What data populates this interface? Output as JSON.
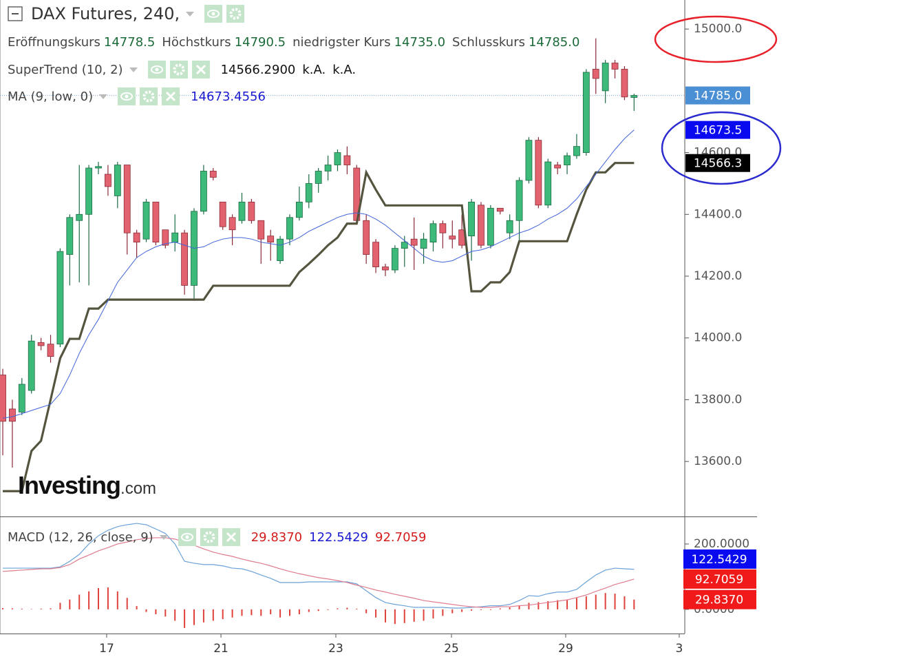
{
  "chart_data": [
    {
      "type": "candlestick",
      "title": "DAX Futures, 240,",
      "ohlc_legend": {
        "names": [
          "Eröffnungskurs",
          "Höchstkurs",
          "niedrigster Kurs",
          "Schlusskurs"
        ],
        "value_labels": [
          "14778.5",
          "14790.5",
          "14735.0",
          "14785.0"
        ]
      },
      "x": [
        0,
        1,
        2,
        3,
        4,
        5,
        6,
        7,
        8,
        9,
        10,
        11,
        12,
        13,
        14,
        15,
        16,
        17,
        18,
        19,
        20,
        21,
        22,
        23,
        24,
        25,
        26,
        27,
        28,
        29,
        30,
        31,
        32,
        33,
        34,
        35,
        36,
        37,
        38,
        39,
        40,
        41,
        42,
        43,
        44,
        45,
        46,
        47,
        48,
        49,
        50,
        51,
        52,
        53,
        54,
        55,
        56,
        57,
        58,
        59,
        60,
        61,
        62,
        63,
        64,
        65,
        66
      ],
      "open": [
        13880,
        13770,
        13760,
        13830,
        13985,
        13980,
        13980,
        14270,
        14380,
        14400,
        14550,
        14530,
        14460,
        14560,
        14340,
        14320,
        14440,
        14350,
        14310,
        14340,
        14170,
        14410,
        14540,
        14440,
        14390,
        14380,
        14440,
        14380,
        14330,
        14250,
        14320,
        14390,
        14440,
        14500,
        14540,
        14560,
        14590,
        14550,
        14380,
        14310,
        14230,
        14220,
        14290,
        14320,
        14290,
        14310,
        14370,
        14330,
        14350,
        14330,
        14430,
        14300,
        14420,
        14340,
        14380,
        14510,
        14640,
        14430,
        14560,
        14560,
        14590,
        14600,
        14870,
        14800,
        14890,
        14870,
        14778.5
      ],
      "high": [
        13900,
        13800,
        13870,
        14010,
        14000,
        14010,
        14290,
        14400,
        14560,
        14560,
        14570,
        14560,
        14570,
        14560,
        14350,
        14450,
        14440,
        14350,
        14400,
        14350,
        14420,
        14560,
        14550,
        14440,
        14400,
        14470,
        14450,
        14380,
        14350,
        14330,
        14400,
        14490,
        14530,
        14550,
        14590,
        14610,
        14620,
        14560,
        14400,
        14320,
        14240,
        14300,
        14330,
        14390,
        14340,
        14380,
        14380,
        14380,
        14400,
        14450,
        14440,
        14430,
        14420,
        14400,
        14520,
        14650,
        14650,
        14580,
        14570,
        14600,
        14660,
        14870,
        14970,
        14900,
        14900,
        14880,
        14790.5
      ],
      "low": [
        13620,
        13580,
        13750,
        13820,
        13960,
        13920,
        13970,
        14170,
        14180,
        14170,
        14530,
        14460,
        14420,
        14270,
        14260,
        14310,
        14300,
        14290,
        14280,
        14140,
        14120,
        14400,
        14510,
        14350,
        14300,
        14370,
        14370,
        14240,
        14250,
        14240,
        14300,
        14380,
        14420,
        14470,
        14510,
        14540,
        14530,
        14370,
        14240,
        14210,
        14200,
        14210,
        14230,
        14220,
        14240,
        14280,
        14290,
        14290,
        14290,
        14250,
        14290,
        14290,
        14400,
        14320,
        14310,
        14500,
        14420,
        14420,
        14530,
        14530,
        14580,
        14590,
        14790,
        14760,
        14840,
        14770,
        14735
      ],
      "close": [
        13730,
        13730,
        13850,
        13990,
        13975,
        13940,
        14280,
        14390,
        14400,
        14550,
        14555,
        14490,
        14560,
        14340,
        14310,
        14440,
        14310,
        14300,
        14340,
        14170,
        14410,
        14540,
        14520,
        14360,
        14350,
        14440,
        14380,
        14320,
        14310,
        14320,
        14390,
        14440,
        14500,
        14540,
        14560,
        14600,
        14560,
        14380,
        14270,
        14230,
        14220,
        14290,
        14310,
        14300,
        14320,
        14370,
        14340,
        14320,
        14300,
        14440,
        14300,
        14420,
        14410,
        14380,
        14510,
        14640,
        14430,
        14570,
        14550,
        14590,
        14620,
        14860,
        14840,
        14890,
        14870,
        14780,
        14785
      ],
      "up_color": "#3dba7a",
      "down_color": "#e2636f",
      "up_wick_color": "#1c6a44",
      "down_wick_color": "#8a2a36",
      "close_badge_label": "14785.0",
      "close_badge_color": "#4a8fd4",
      "series": [
        {
          "name": "SuperTrend (10, 2)",
          "color": "#55553f",
          "width": 3.2,
          "values": [
            13504,
            13504,
            13504,
            13634,
            13667,
            13800,
            13934,
            13997,
            13997,
            14095,
            14095,
            14124,
            14124,
            14124,
            14124,
            14124,
            14124,
            14124,
            14124,
            14124,
            14124,
            14124,
            14169,
            14169,
            14169,
            14169,
            14169,
            14169,
            14169,
            14169,
            14169,
            14213,
            14240,
            14269,
            14300,
            14325,
            14370,
            14370,
            14536,
            14480,
            14429,
            14429,
            14429,
            14429,
            14429,
            14429,
            14429,
            14429,
            14429,
            14151,
            14151,
            14180,
            14180,
            14213,
            14313,
            14313,
            14313,
            14313,
            14313,
            14313,
            14400,
            14480,
            14536,
            14536,
            14566.29,
            14566.29,
            14566.29
          ],
          "reading_label": "14566.2900",
          "notes": [
            "k.A.",
            "k.A."
          ],
          "badge_label": "14566.3",
          "badge_color": "#000000"
        },
        {
          "name": "MA (9, low, 0)",
          "color": "#3f63d8",
          "width": 1,
          "values": [
            13740,
            13745,
            13755,
            13765,
            13775,
            13785,
            13820,
            13880,
            13950,
            14010,
            14060,
            14120,
            14180,
            14220,
            14260,
            14280,
            14295,
            14305,
            14310,
            14300,
            14290,
            14295,
            14310,
            14320,
            14325,
            14325,
            14320,
            14310,
            14305,
            14300,
            14310,
            14325,
            14345,
            14360,
            14375,
            14390,
            14400,
            14405,
            14400,
            14385,
            14365,
            14340,
            14315,
            14290,
            14265,
            14250,
            14245,
            14250,
            14265,
            14280,
            14285,
            14295,
            14310,
            14325,
            14340,
            14350,
            14365,
            14385,
            14400,
            14420,
            14450,
            14490,
            14530,
            14570,
            14610,
            14645,
            14673.4556
          ],
          "badge_label": "14673.5",
          "badge_color": "#0a0af0"
        }
      ],
      "xlim": [
        -0.29,
        71.3
      ],
      "ylim": [
        13422,
        15094
      ],
      "yticks": [
        {
          "value": 15000,
          "label": "15000.0"
        },
        {
          "value": 14600,
          "label": "14600.0"
        },
        {
          "value": 14400,
          "label": "14400.0"
        },
        {
          "value": 14200,
          "label": "14200.0"
        },
        {
          "value": 14000,
          "label": "14000.0"
        },
        {
          "value": 13800,
          "label": "13800.0"
        },
        {
          "value": 13600,
          "label": "13600.0"
        }
      ],
      "watermark": [
        "Investing",
        ".com"
      ]
    },
    {
      "type": "macd",
      "title": "MACD (12, 26, close, 9)",
      "series": [
        {
          "type": "bar",
          "color": "#e0403a",
          "values": [
            4,
            3,
            2,
            1,
            0,
            3,
            20,
            30,
            45,
            55,
            65,
            67,
            55,
            35,
            10,
            -8,
            -15,
            -22,
            -35,
            -57,
            -48,
            -40,
            -35,
            -30,
            -25,
            -20,
            -18,
            -20,
            -15,
            -25,
            -20,
            -15,
            -8,
            -5,
            -2,
            3,
            5,
            2,
            -12,
            -25,
            -40,
            -45,
            -42,
            -38,
            -35,
            -28,
            -20,
            -12,
            -8,
            -4,
            -2,
            -2,
            3,
            6,
            12,
            20,
            22,
            25,
            28,
            30,
            35,
            40,
            45,
            50,
            48,
            40,
            29.837
          ],
          "reading_label": "29.8370",
          "badge_label": "29.8370",
          "badge_color": "#f01a1a"
        },
        {
          "type": "line",
          "color": "#6aa2d8",
          "values": [
            126,
            126,
            126,
            126,
            126,
            126,
            130,
            147,
            168,
            200,
            225,
            242,
            253,
            259,
            263,
            259,
            246,
            232,
            200,
            147,
            141,
            137,
            137,
            133,
            126,
            124,
            116,
            105,
            95,
            82,
            82,
            82,
            84,
            84,
            84,
            84,
            84,
            78,
            57,
            36,
            21,
            15,
            11,
            6,
            6,
            6,
            6,
            4,
            4,
            6,
            8,
            11,
            11,
            15,
            27,
            42,
            40,
            48,
            53,
            53,
            61,
            84,
            105,
            120,
            126,
            124,
            122.5429
          ],
          "badge_color": "#0a0af0"
        },
        {
          "type": "line",
          "color": "#df7b8c",
          "values": [
            116,
            118,
            120,
            122,
            124,
            124,
            128,
            137,
            154,
            166,
            179,
            189,
            200,
            206,
            213,
            217,
            219,
            219,
            215,
            206,
            196,
            185,
            175,
            168,
            162,
            154,
            147,
            141,
            133,
            124,
            116,
            109,
            103,
            97,
            93,
            88,
            82,
            74,
            67,
            59,
            53,
            46,
            40,
            34,
            27,
            23,
            19,
            15,
            11,
            8,
            6,
            6,
            8,
            8,
            11,
            13,
            17,
            21,
            25,
            29,
            36,
            44,
            55,
            65,
            76,
            84,
            92.7059
          ],
          "badge_color": "#f01a1a"
        }
      ],
      "ylim": [
        -74,
        280
      ],
      "yticks": [
        {
          "value": 200,
          "label": "200.0000"
        },
        {
          "value": 0,
          "label": "0.0000"
        }
      ],
      "xticks": [
        {
          "value": 10.86,
          "label": "17"
        },
        {
          "value": 22.81,
          "label": "21"
        },
        {
          "value": 34.82,
          "label": "23"
        },
        {
          "value": 46.91,
          "label": "25"
        },
        {
          "value": 58.85,
          "label": "29"
        },
        {
          "value": 70.72,
          "label": "3"
        }
      ]
    }
  ]
}
